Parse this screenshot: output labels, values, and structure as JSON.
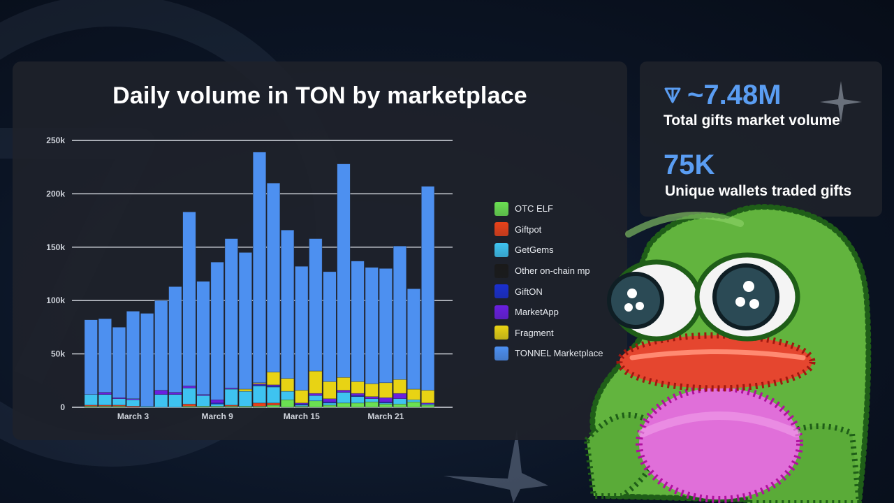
{
  "chart_data": {
    "type": "bar",
    "stacked": true,
    "title": "Daily volume in TON by marketplace",
    "xlabel": "",
    "ylabel": "",
    "ylim": [
      0,
      250000
    ],
    "yticks": [
      0,
      50000,
      100000,
      150000,
      200000,
      250000
    ],
    "ytick_labels": [
      "0",
      "50k",
      "100k",
      "150k",
      "200k",
      "250k"
    ],
    "xtick_labels": [
      {
        "label": "March 3",
        "index": 3
      },
      {
        "label": "March 9",
        "index": 9
      },
      {
        "label": "March 15",
        "index": 15
      },
      {
        "label": "March 21",
        "index": 21
      }
    ],
    "grid": "horizontal",
    "legend_position": "right",
    "series": [
      {
        "name": "OTC ELF",
        "color": "#6be052",
        "values": [
          1000,
          1000,
          1000,
          0,
          0,
          0,
          0,
          1000,
          1000,
          1000,
          1000,
          1000,
          1000,
          2000,
          7000,
          1000,
          6000,
          2000,
          4000,
          4000,
          5000,
          3000,
          3000,
          5000,
          2000
        ]
      },
      {
        "name": "Giftpot",
        "color": "#e8421a",
        "values": [
          1000,
          1000,
          1000,
          1000,
          0,
          0,
          0,
          2000,
          0,
          0,
          1000,
          0,
          3000,
          2000,
          0,
          0,
          0,
          0,
          0,
          0,
          0,
          0,
          0,
          0,
          0
        ]
      },
      {
        "name": "GetGems",
        "color": "#3ec3f0",
        "values": [
          10000,
          10000,
          6000,
          6000,
          1000,
          12000,
          12000,
          15000,
          10000,
          2000,
          15000,
          14000,
          16000,
          15000,
          8000,
          1000,
          5000,
          2000,
          10000,
          6000,
          3000,
          1000,
          5000,
          2000,
          1000
        ]
      },
      {
        "name": "Other on-chain mp",
        "color": "#1a1a1a",
        "values": [
          0,
          0,
          0,
          0,
          0,
          0,
          0,
          0,
          0,
          0,
          0,
          0,
          0,
          0,
          0,
          0,
          0,
          0,
          0,
          0,
          0,
          0,
          0,
          0,
          0
        ]
      },
      {
        "name": "GiftON",
        "color": "#1a2fd0",
        "values": [
          0,
          0,
          0,
          0,
          0,
          0,
          0,
          0,
          0,
          1000,
          0,
          0,
          1000,
          1000,
          0,
          1000,
          0,
          1000,
          0,
          1000,
          0,
          1000,
          0,
          0,
          0
        ]
      },
      {
        "name": "MarketApp",
        "color": "#6a1fe0",
        "values": [
          0,
          2000,
          1000,
          1000,
          0,
          4000,
          2000,
          2000,
          1000,
          3000,
          1000,
          0,
          1000,
          1000,
          0,
          1000,
          2000,
          3000,
          2000,
          2000,
          2000,
          4000,
          5000,
          0,
          1000
        ]
      },
      {
        "name": "Fragment",
        "color": "#e8d314",
        "values": [
          0,
          0,
          0,
          0,
          0,
          0,
          0,
          0,
          0,
          0,
          0,
          2000,
          1000,
          12000,
          12000,
          12000,
          21000,
          16000,
          12000,
          11000,
          12000,
          14000,
          13000,
          10000,
          12000
        ]
      },
      {
        "name": "TONNEL Marketplace",
        "color": "#4d90f0",
        "values": [
          70000,
          69000,
          66000,
          82000,
          87000,
          84000,
          99000,
          163000,
          106000,
          129000,
          140000,
          128000,
          216000,
          177000,
          139000,
          116000,
          124000,
          103000,
          200000,
          113000,
          109000,
          107000,
          125000,
          94000,
          191000
        ]
      }
    ]
  },
  "stats": {
    "total_volume_value": "~7.48M",
    "total_volume_label": "Total gifts market volume",
    "unique_wallets_value": "75K",
    "unique_wallets_label": "Unique wallets traded gifts"
  },
  "icons": {
    "ton": "ton-logo-icon",
    "sparkle": "sparkle-icon",
    "mascot": "pepe-frog-illustration"
  },
  "colors": {
    "accent": "#5a9df2",
    "card": "#1e222a",
    "background": "#0b1424"
  }
}
